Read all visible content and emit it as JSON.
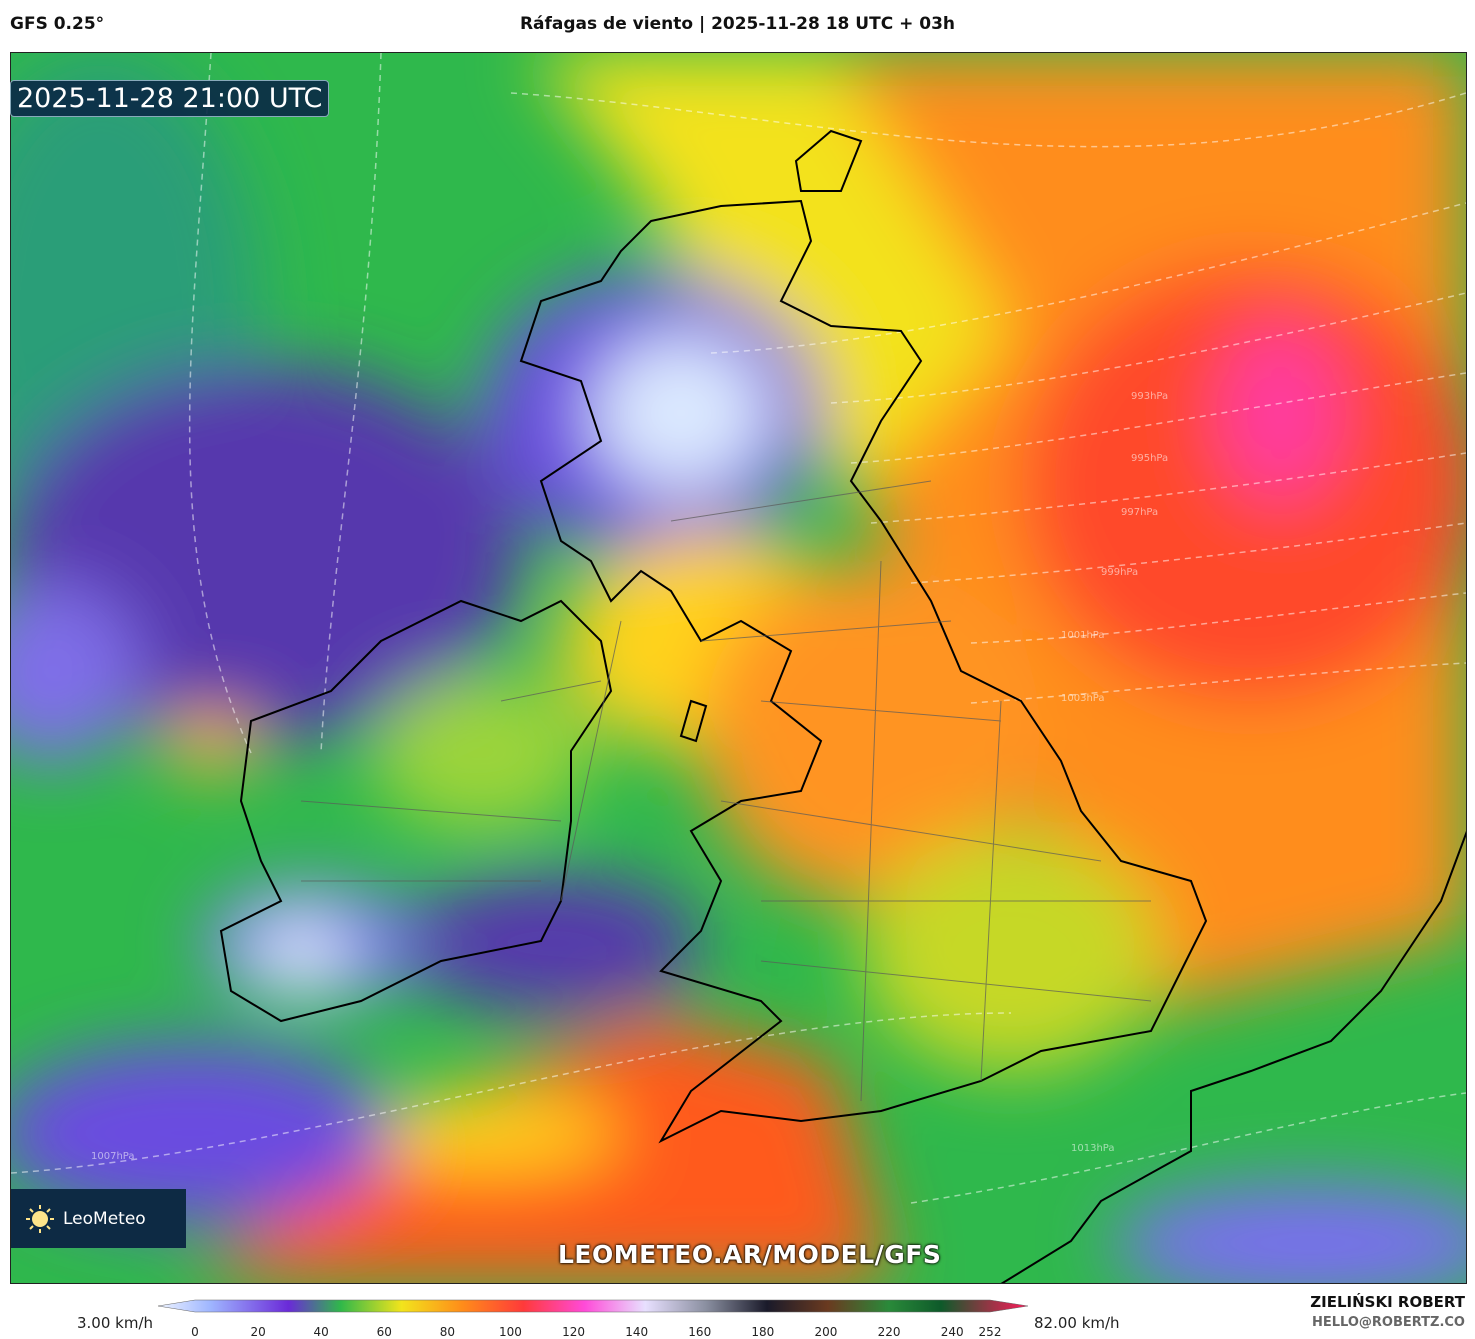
{
  "header": {
    "model": "GFS 0.25°",
    "title": "Ráfagas de viento | 2025-11-28 18 UTC + 03h"
  },
  "map": {
    "timestamp": "2025-11-28 21:00 UTC",
    "logo": "LeoMeteo",
    "watermark": "LEOMETEO.AR/MODEL/GFS",
    "isobar_labels": [
      "993hPa",
      "995hPa",
      "997hPa",
      "999hPa",
      "1001hPa",
      "1003hPa",
      "1007hPa",
      "1013hPa"
    ]
  },
  "legend": {
    "min_label": "3.00 km/h",
    "max_label": "82.00 km/h",
    "ticks": [
      0,
      20,
      40,
      60,
      80,
      100,
      120,
      140,
      160,
      180,
      200,
      220,
      240,
      252
    ]
  },
  "credits": {
    "author": "ZIELIŃSKI ROBERT",
    "email": "HELLO@ROBERTZ.CO"
  }
}
